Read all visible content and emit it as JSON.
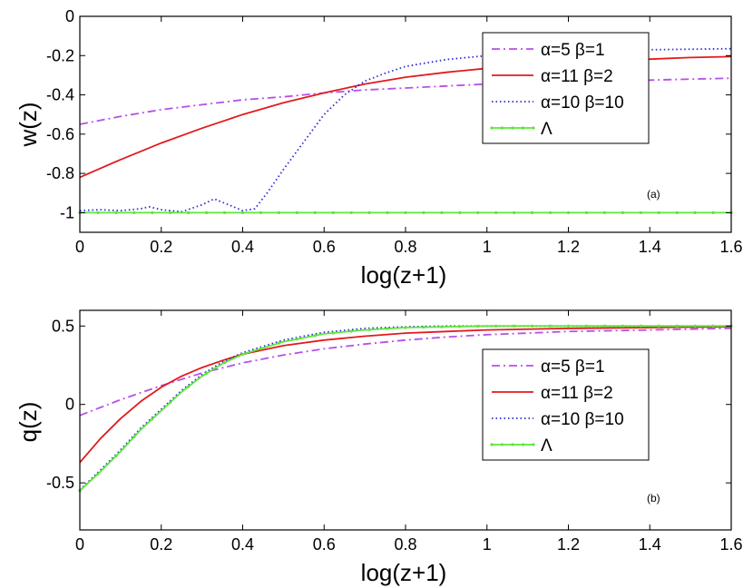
{
  "chart_data": [
    {
      "type": "line",
      "panel_label": "(a)",
      "xlabel": "log(z+1)",
      "ylabel": "w(z)",
      "xlim": [
        0,
        1.6
      ],
      "ylim": [
        -1.1,
        0
      ],
      "xticks": [
        "0",
        "0.2",
        "0.4",
        "0.6",
        "0.8",
        "1",
        "1.2",
        "1.4",
        "1.6"
      ],
      "yticks": [
        "0",
        "-0.2",
        "-0.4",
        "-0.6",
        "-0.8",
        "-1"
      ],
      "grid": false,
      "legend_position": "top-right",
      "series": [
        {
          "name": "α=5 β=1",
          "color": "#b84fe8",
          "style": "dashdot",
          "x": [
            0,
            0.1,
            0.2,
            0.3,
            0.4,
            0.5,
            0.6,
            0.7,
            0.8,
            0.9,
            1.0,
            1.1,
            1.2,
            1.3,
            1.4,
            1.5,
            1.6
          ],
          "y": [
            -0.55,
            -0.51,
            -0.475,
            -0.45,
            -0.425,
            -0.41,
            -0.39,
            -0.375,
            -0.365,
            -0.355,
            -0.345,
            -0.34,
            -0.335,
            -0.33,
            -0.325,
            -0.32,
            -0.315
          ]
        },
        {
          "name": "α=11 β=2",
          "color": "#e31a1c",
          "style": "solid",
          "x": [
            0,
            0.1,
            0.2,
            0.3,
            0.4,
            0.5,
            0.6,
            0.7,
            0.8,
            0.9,
            1.0,
            1.1,
            1.2,
            1.3,
            1.4,
            1.5,
            1.6
          ],
          "y": [
            -0.82,
            -0.73,
            -0.645,
            -0.57,
            -0.5,
            -0.44,
            -0.39,
            -0.345,
            -0.31,
            -0.285,
            -0.265,
            -0.25,
            -0.235,
            -0.225,
            -0.218,
            -0.21,
            -0.205
          ]
        },
        {
          "name": "α=10 β=10",
          "color": "#2b2bd4",
          "style": "dotted",
          "x": [
            0,
            0.05,
            0.1,
            0.15,
            0.17,
            0.2,
            0.25,
            0.3,
            0.33,
            0.36,
            0.4,
            0.43,
            0.46,
            0.5,
            0.55,
            0.6,
            0.65,
            0.7,
            0.75,
            0.8,
            0.9,
            1.0,
            1.1,
            1.2,
            1.4,
            1.6
          ],
          "y": [
            -0.99,
            -0.985,
            -0.99,
            -0.98,
            -0.97,
            -0.985,
            -0.995,
            -0.96,
            -0.93,
            -0.955,
            -0.99,
            -0.98,
            -0.9,
            -0.78,
            -0.64,
            -0.5,
            -0.4,
            -0.33,
            -0.29,
            -0.255,
            -0.22,
            -0.2,
            -0.185,
            -0.175,
            -0.17,
            -0.165
          ]
        },
        {
          "name": "Λ",
          "color": "#5ce63a",
          "style": "solid-markers",
          "x": [
            0,
            1.6
          ],
          "y": [
            -1,
            -1
          ]
        }
      ]
    },
    {
      "type": "line",
      "panel_label": "(b)",
      "xlabel": "log(z+1)",
      "ylabel": "q(z)",
      "xlim": [
        0,
        1.6
      ],
      "ylim": [
        -0.8,
        0.6
      ],
      "xticks": [
        "0",
        "0.2",
        "0.4",
        "0.6",
        "0.8",
        "1",
        "1.2",
        "1.4",
        "1.6"
      ],
      "yticks": [
        "0.5",
        "0",
        "-0.5"
      ],
      "grid": false,
      "legend_position": "right",
      "series": [
        {
          "name": "α=5 β=1",
          "color": "#b84fe8",
          "style": "dashdot",
          "x": [
            0,
            0.1,
            0.2,
            0.3,
            0.4,
            0.5,
            0.6,
            0.7,
            0.8,
            0.9,
            1.0,
            1.1,
            1.2,
            1.3,
            1.4,
            1.5,
            1.6
          ],
          "y": [
            -0.07,
            0.03,
            0.12,
            0.2,
            0.265,
            0.315,
            0.355,
            0.385,
            0.41,
            0.43,
            0.445,
            0.455,
            0.465,
            0.47,
            0.475,
            0.48,
            0.485
          ]
        },
        {
          "name": "α=11 β=2",
          "color": "#e31a1c",
          "style": "solid",
          "x": [
            0,
            0.05,
            0.1,
            0.15,
            0.2,
            0.25,
            0.3,
            0.35,
            0.4,
            0.5,
            0.6,
            0.7,
            0.8,
            0.9,
            1.0,
            1.2,
            1.4,
            1.6
          ],
          "y": [
            -0.37,
            -0.22,
            -0.09,
            0.02,
            0.11,
            0.18,
            0.235,
            0.28,
            0.32,
            0.375,
            0.41,
            0.435,
            0.455,
            0.465,
            0.475,
            0.485,
            0.49,
            0.495
          ]
        },
        {
          "name": "α=10 β=10",
          "color": "#2b2bd4",
          "style": "dotted",
          "x": [
            0,
            0.05,
            0.1,
            0.15,
            0.2,
            0.25,
            0.3,
            0.35,
            0.4,
            0.5,
            0.6,
            0.7,
            0.8,
            0.9,
            1.0,
            1.2,
            1.4,
            1.6
          ],
          "y": [
            -0.545,
            -0.42,
            -0.29,
            -0.15,
            -0.03,
            0.09,
            0.19,
            0.27,
            0.33,
            0.41,
            0.46,
            0.485,
            0.495,
            0.5,
            0.5,
            0.5,
            0.5,
            0.5
          ]
        },
        {
          "name": "Λ",
          "color": "#5ce63a",
          "style": "solid-markers",
          "x": [
            0,
            0.05,
            0.1,
            0.15,
            0.2,
            0.25,
            0.3,
            0.35,
            0.4,
            0.5,
            0.6,
            0.7,
            0.8,
            0.9,
            1.0,
            1.2,
            1.4,
            1.6
          ],
          "y": [
            -0.55,
            -0.43,
            -0.3,
            -0.16,
            -0.04,
            0.08,
            0.18,
            0.26,
            0.32,
            0.4,
            0.45,
            0.475,
            0.49,
            0.495,
            0.5,
            0.5,
            0.5,
            0.5
          ]
        }
      ]
    }
  ]
}
